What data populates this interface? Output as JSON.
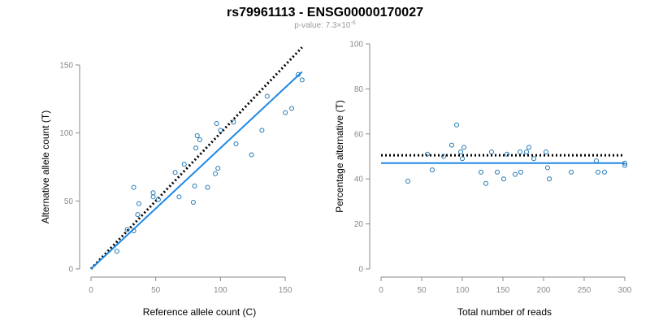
{
  "title": "rs79961113 - ENSG00000170027",
  "subtitle": {
    "prefix": "p-value: 7.3",
    "times": "×",
    "base": "10",
    "exponent": "-6"
  },
  "colors": {
    "points": "#1f78b4",
    "fit_line": "#1e88e5",
    "reference_line": "#000000",
    "axis": "#8a8a8a"
  },
  "chart_data": [
    {
      "type": "scatter",
      "title": "",
      "xlabel": "Reference allele count (C)",
      "ylabel": "Alternative allele count (T)",
      "xlim": [
        0,
        165
      ],
      "ylim": [
        0,
        150
      ],
      "xticks": [
        0,
        50,
        100,
        150
      ],
      "yticks": [
        0,
        50,
        100,
        150
      ],
      "grid": false,
      "points": [
        [
          20,
          13
        ],
        [
          28,
          29
        ],
        [
          33,
          28
        ],
        [
          33,
          60
        ],
        [
          36,
          40
        ],
        [
          37,
          48
        ],
        [
          48,
          53
        ],
        [
          48,
          56
        ],
        [
          52,
          51
        ],
        [
          65,
          71
        ],
        [
          68,
          53
        ],
        [
          72,
          77
        ],
        [
          79,
          49
        ],
        [
          80,
          61
        ],
        [
          81,
          89
        ],
        [
          82,
          98
        ],
        [
          84,
          95
        ],
        [
          90,
          60
        ],
        [
          96,
          70
        ],
        [
          97,
          107
        ],
        [
          98,
          74
        ],
        [
          100,
          102
        ],
        [
          110,
          108
        ],
        [
          112,
          92
        ],
        [
          124,
          84
        ],
        [
          132,
          102
        ],
        [
          136,
          127
        ],
        [
          150,
          115
        ],
        [
          155,
          118
        ],
        [
          160,
          143
        ],
        [
          163,
          139
        ]
      ],
      "reference_line": {
        "style": "dotted",
        "from": [
          0,
          0
        ],
        "to": [
          163,
          163
        ]
      },
      "fit_line": {
        "style": "solid",
        "from": [
          0,
          0
        ],
        "to": [
          163,
          145
        ]
      }
    },
    {
      "type": "scatter",
      "title": "",
      "xlabel": "Total number of reads",
      "ylabel": "Percentage alternative (T)",
      "xlim": [
        0,
        300
      ],
      "ylim": [
        0,
        100
      ],
      "xticks": [
        0,
        50,
        100,
        150,
        200,
        250,
        300
      ],
      "yticks": [
        0,
        20,
        40,
        60,
        80,
        100
      ],
      "grid": false,
      "points": [
        [
          33,
          39
        ],
        [
          57,
          51
        ],
        [
          63,
          44
        ],
        [
          77,
          50
        ],
        [
          87,
          55
        ],
        [
          93,
          64
        ],
        [
          98,
          52
        ],
        [
          100,
          49
        ],
        [
          102,
          54
        ],
        [
          123,
          43
        ],
        [
          129,
          38
        ],
        [
          136,
          52
        ],
        [
          143,
          43
        ],
        [
          151,
          40
        ],
        [
          155,
          51
        ],
        [
          165,
          42
        ],
        [
          171,
          52
        ],
        [
          172,
          43
        ],
        [
          179,
          52
        ],
        [
          182,
          54
        ],
        [
          188,
          49
        ],
        [
          203,
          52
        ],
        [
          205,
          45
        ],
        [
          207,
          40
        ],
        [
          234,
          43
        ],
        [
          265,
          48
        ],
        [
          267,
          43
        ],
        [
          275,
          43
        ],
        [
          300,
          46
        ],
        [
          300,
          47
        ]
      ],
      "reference_line": {
        "style": "dotted",
        "y": 50.5
      },
      "fit_line": {
        "style": "solid",
        "y": 47
      }
    }
  ]
}
